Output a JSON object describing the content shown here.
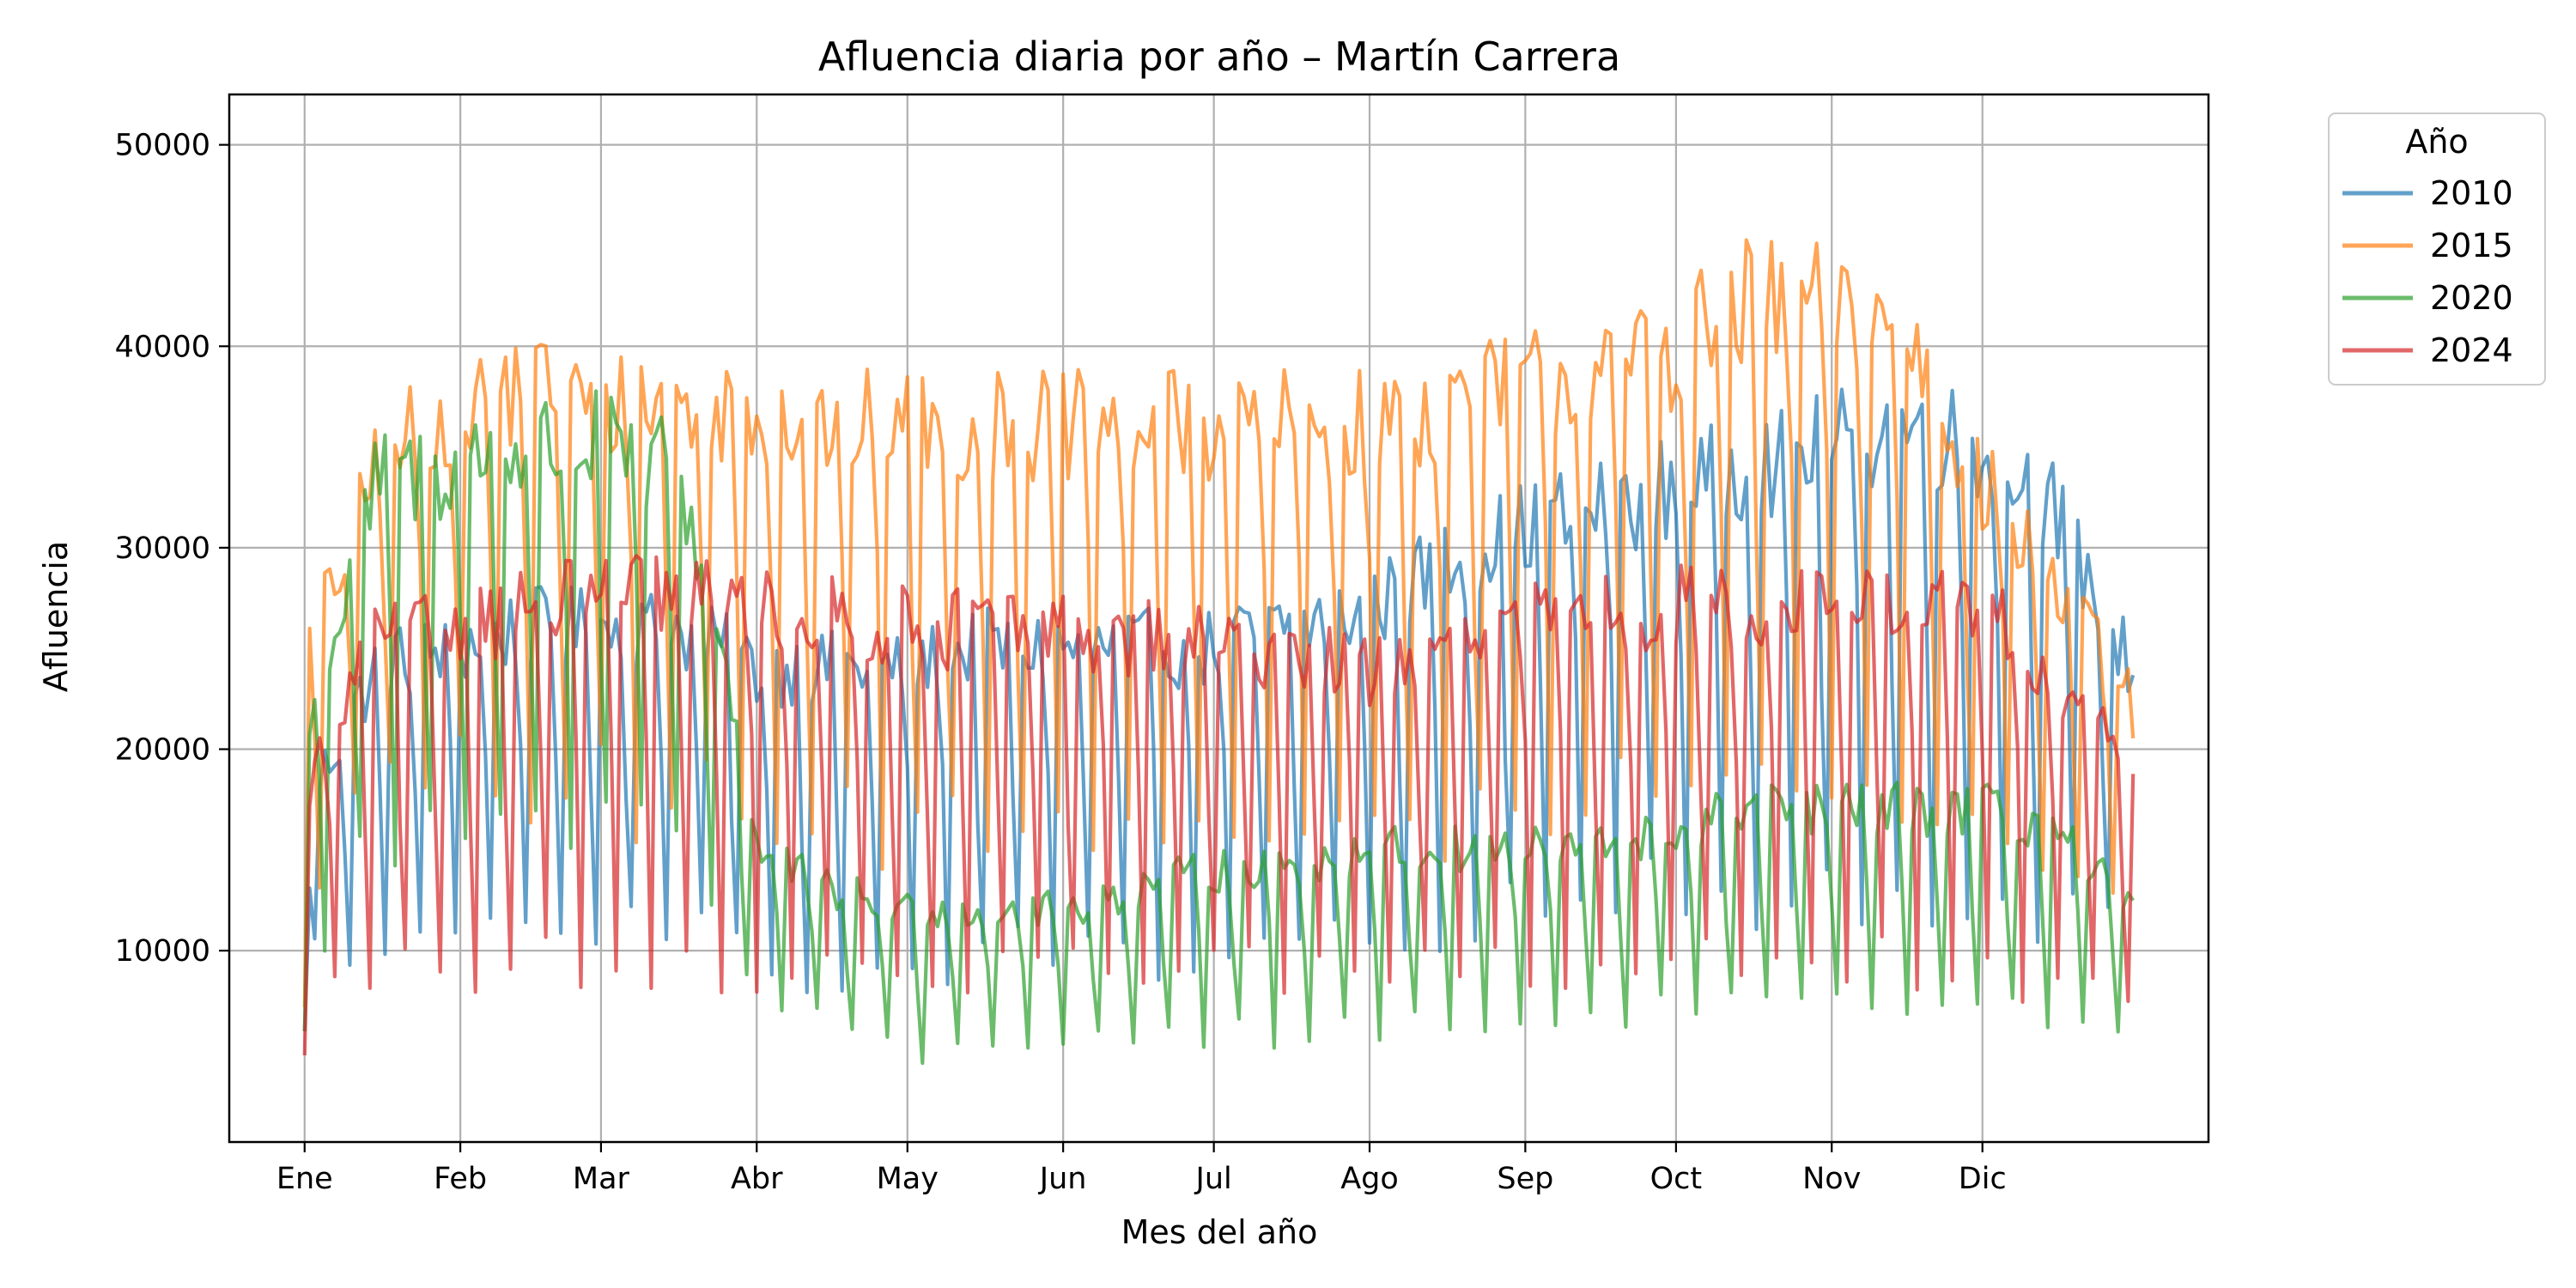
{
  "chart_data": {
    "type": "line",
    "title": "Afluencia diaria por año – Martín Carrera",
    "xlabel": "Mes del año",
    "ylabel": "Afluencia",
    "x_unit": "day of year",
    "xlim": [
      -14,
      380
    ],
    "ylim": [
      500,
      52500
    ],
    "x_ticks": [
      {
        "label": "Ene",
        "day": 1
      },
      {
        "label": "Feb",
        "day": 32
      },
      {
        "label": "Mar",
        "day": 60
      },
      {
        "label": "Abr",
        "day": 91
      },
      {
        "label": "May",
        "day": 121
      },
      {
        "label": "Jun",
        "day": 152
      },
      {
        "label": "Jul",
        "day": 182
      },
      {
        "label": "Ago",
        "day": 213
      },
      {
        "label": "Sep",
        "day": 244
      },
      {
        "label": "Oct",
        "day": 274
      },
      {
        "label": "Nov",
        "day": 305
      },
      {
        "label": "Dic",
        "day": 335
      }
    ],
    "y_ticks": [
      10000,
      20000,
      30000,
      40000,
      50000
    ],
    "grid": true,
    "legend": {
      "title": "Año",
      "placement": "outside-top-right"
    },
    "series": [
      {
        "name": "2010",
        "color": "#1f77b4",
        "days": [
          1,
          15,
          30,
          45,
          60,
          75,
          91,
          105,
          121,
          135,
          152,
          166,
          182,
          196,
          213,
          227,
          244,
          258,
          274,
          288,
          305,
          319,
          335,
          349,
          365
        ],
        "weekday_mean": [
          17000,
          24000,
          25000,
          26000,
          26000,
          26000,
          24000,
          24000,
          24000,
          25000,
          25000,
          25000,
          25000,
          26000,
          27000,
          29000,
          31000,
          32000,
          33000,
          34000,
          35000,
          36000,
          35000,
          32000,
          24000
        ],
        "weekend_mean": [
          10000,
          9000,
          11000,
          12000,
          12000,
          12000,
          10000,
          8000,
          9000,
          10000,
          10000,
          10000,
          10000,
          10000,
          11000,
          11000,
          12000,
          13000,
          13000,
          13000,
          13000,
          13000,
          13000,
          12000,
          10000
        ]
      },
      {
        "name": "2015",
        "color": "#ff7f0e",
        "days": [
          1,
          15,
          30,
          45,
          60,
          75,
          91,
          105,
          121,
          135,
          152,
          166,
          182,
          196,
          213,
          227,
          244,
          258,
          274,
          288,
          305,
          319,
          335,
          349,
          365
        ],
        "weekday_mean": [
          24000,
          34000,
          37000,
          38000,
          37000,
          37000,
          37000,
          36000,
          36000,
          36000,
          36000,
          36000,
          36000,
          36000,
          36000,
          37000,
          38000,
          39000,
          40000,
          42000,
          42000,
          41000,
          33000,
          28000,
          22000
        ],
        "weekend_mean": [
          12000,
          17000,
          18000,
          18000,
          18000,
          18000,
          17000,
          16000,
          16000,
          16000,
          16000,
          16000,
          16000,
          16000,
          16000,
          16000,
          17000,
          17000,
          18000,
          18000,
          18000,
          18000,
          17000,
          15000,
          12000
        ]
      },
      {
        "name": "2020",
        "color": "#2ca02c",
        "days": [
          1,
          15,
          30,
          45,
          60,
          75,
          85,
          91,
          105,
          121,
          135,
          152,
          166,
          182,
          196,
          213,
          227,
          244,
          258,
          274,
          288,
          305,
          319,
          335,
          349,
          365
        ],
        "weekday_mean": [
          20000,
          33000,
          34000,
          35000,
          35000,
          34000,
          24000,
          15000,
          13000,
          12000,
          12000,
          12000,
          13000,
          14000,
          14000,
          15000,
          15000,
          15000,
          15000,
          16000,
          17000,
          17000,
          17000,
          17000,
          16000,
          12000
        ],
        "weekend_mean": [
          10000,
          15000,
          16000,
          16000,
          16000,
          15000,
          12000,
          8000,
          6000,
          5000,
          5500,
          5500,
          5500,
          6000,
          6000,
          6500,
          6500,
          6500,
          6500,
          7000,
          7000,
          7000,
          7000,
          7000,
          6500,
          5000
        ]
      },
      {
        "name": "2024",
        "color": "#d62728",
        "days": [
          1,
          15,
          30,
          45,
          60,
          75,
          91,
          105,
          121,
          135,
          152,
          166,
          182,
          196,
          213,
          227,
          244,
          258,
          274,
          288,
          305,
          319,
          335,
          349,
          365
        ],
        "weekday_mean": [
          18000,
          25000,
          26000,
          27000,
          27500,
          27500,
          27000,
          26500,
          26000,
          26000,
          26000,
          25500,
          25000,
          25000,
          24000,
          24500,
          26000,
          27000,
          27000,
          27000,
          27000,
          27000,
          27000,
          24000,
          19000
        ],
        "weekend_mean": [
          8000,
          9000,
          9000,
          9500,
          9500,
          9500,
          9000,
          9000,
          9000,
          9000,
          9000,
          9000,
          9000,
          9000,
          9000,
          9000,
          9500,
          9500,
          9500,
          9500,
          9500,
          9500,
          9000,
          8500,
          7000
        ]
      }
    ]
  }
}
